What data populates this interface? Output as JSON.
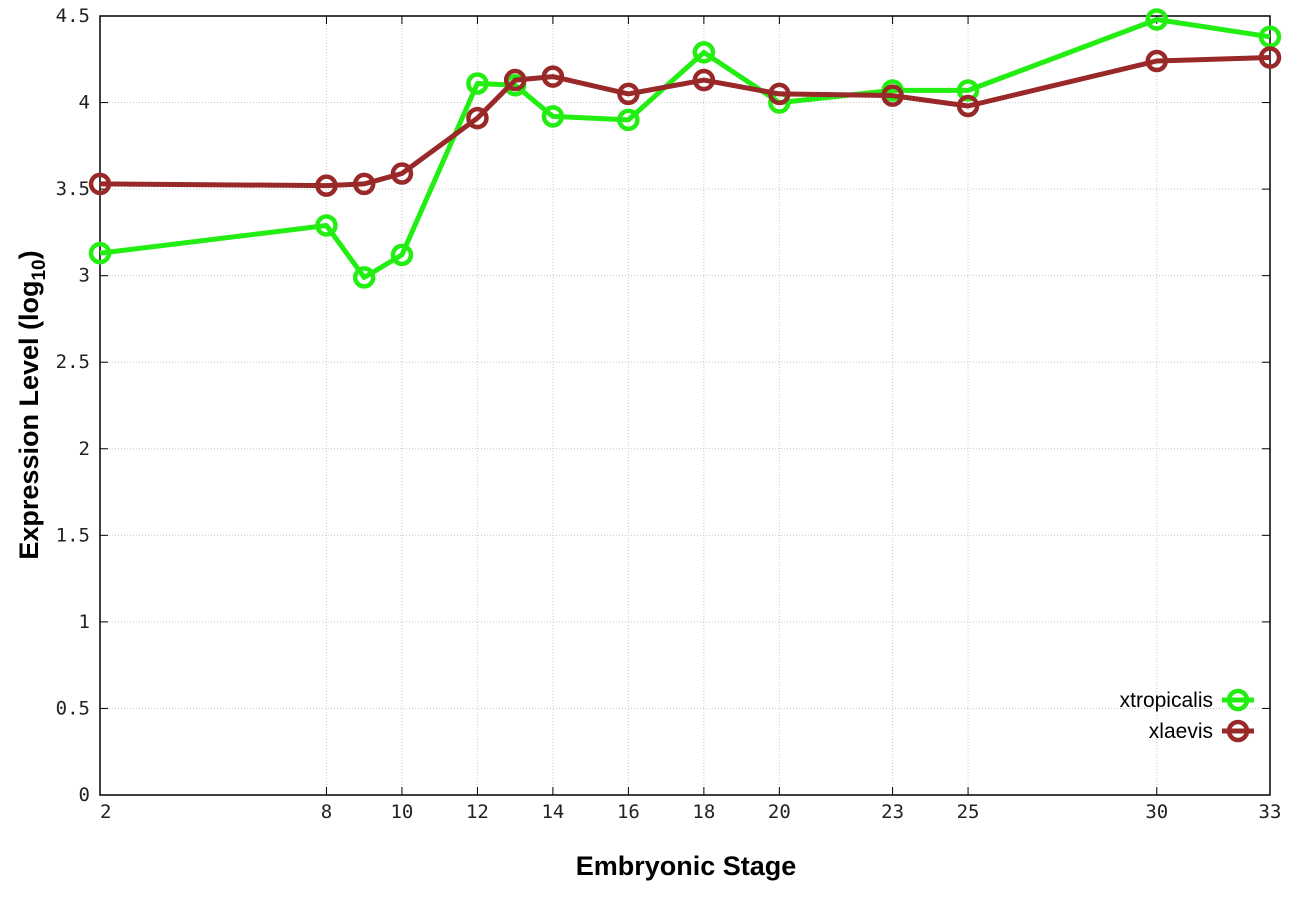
{
  "chart_data": {
    "type": "line",
    "title": "",
    "xlabel": "Embryonic Stage",
    "ylabel_main": "Expression Level (log",
    "ylabel_sub": "10",
    "ylabel_close": ")",
    "x": [
      2,
      8,
      9,
      10,
      12,
      13,
      14,
      16,
      18,
      20,
      23,
      25,
      30,
      33
    ],
    "xticks": [
      2,
      8,
      10,
      12,
      14,
      16,
      18,
      20,
      23,
      25,
      30,
      33
    ],
    "xtick_labels": [
      "2",
      "8",
      "10",
      "12",
      "14",
      "16",
      "18",
      "20",
      "23",
      "25",
      "30",
      "33"
    ],
    "yticks": [
      0,
      0.5,
      1,
      1.5,
      2,
      2.5,
      3,
      3.5,
      4,
      4.5
    ],
    "ytick_labels": [
      "0",
      "0.5",
      "1",
      "1.5",
      "2",
      "2.5",
      "3",
      "3.5",
      "4",
      "4.5"
    ],
    "xlim": [
      2,
      33
    ],
    "ylim": [
      0,
      4.5
    ],
    "grid": true,
    "legend_position": "bottom-right",
    "series": [
      {
        "name": "xtropicalis",
        "color": "#22ee11",
        "values": [
          3.13,
          3.29,
          2.99,
          3.12,
          4.11,
          4.1,
          3.92,
          3.9,
          4.29,
          4.0,
          4.07,
          4.07,
          4.48,
          4.38
        ]
      },
      {
        "name": "xlaevis",
        "color": "#992828",
        "values": [
          3.53,
          3.52,
          3.53,
          3.59,
          3.91,
          4.13,
          4.15,
          4.05,
          4.13,
          4.05,
          4.04,
          3.98,
          4.24,
          4.26
        ]
      }
    ]
  }
}
